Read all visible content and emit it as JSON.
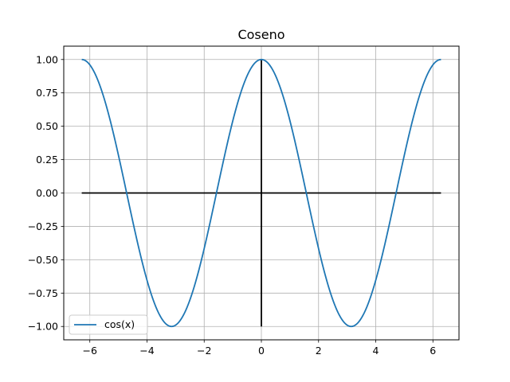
{
  "chart_data": {
    "type": "line",
    "title": "Coseno",
    "xlabel": "",
    "ylabel": "",
    "xlim": [
      -6.912,
      6.912
    ],
    "ylim": [
      -1.1,
      1.1
    ],
    "xticks": [
      -6,
      -4,
      -2,
      0,
      2,
      4,
      6
    ],
    "xtick_labels": [
      "−6",
      "−4",
      "−2",
      "0",
      "2",
      "4",
      "6"
    ],
    "yticks": [
      -1.0,
      -0.75,
      -0.5,
      -0.25,
      0.0,
      0.25,
      0.5,
      0.75,
      1.0
    ],
    "ytick_labels": [
      "−1.00",
      "−0.75",
      "−0.50",
      "−0.25",
      "0.00",
      "0.25",
      "0.50",
      "0.75",
      "1.00"
    ],
    "grid": true,
    "legend_position": "lower-left",
    "series": [
      {
        "name": "cos(x)",
        "color": "#1f77b4",
        "function": "cos(x)",
        "x_range": [
          -6.283,
          6.283
        ]
      }
    ],
    "reference_lines": [
      {
        "orientation": "horizontal",
        "y": 0,
        "x_range": [
          -6.283,
          6.283
        ],
        "color": "#000000"
      },
      {
        "orientation": "vertical",
        "x": 0,
        "y_range": [
          -1,
          1
        ],
        "color": "#000000"
      }
    ]
  }
}
